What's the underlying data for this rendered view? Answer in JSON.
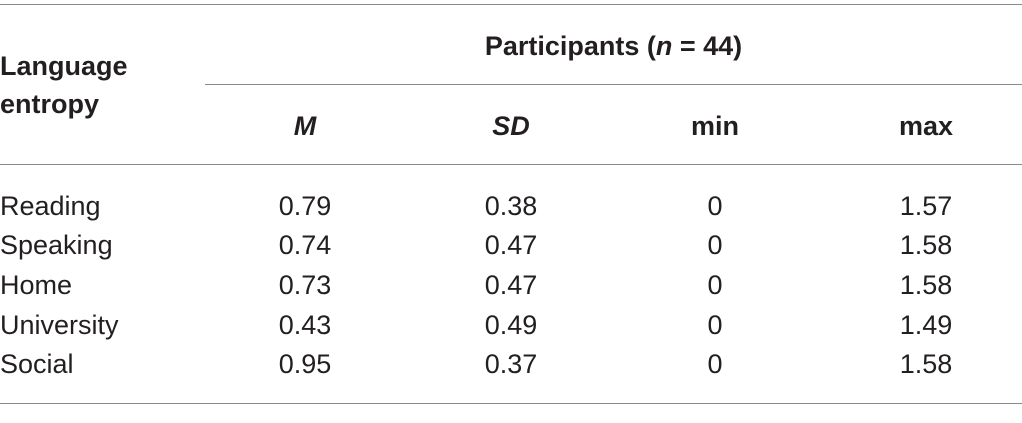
{
  "table": {
    "row_header": "Language entropy",
    "group_header": {
      "prefix": "Participants (",
      "n_symbol": "n",
      "suffix": " = 44)"
    },
    "columns": [
      "M",
      "SD",
      "min",
      "max"
    ],
    "rows": [
      {
        "label": "Reading",
        "M": "0.79",
        "SD": "0.38",
        "min": "0",
        "max": "1.57"
      },
      {
        "label": "Speaking",
        "M": "0.74",
        "SD": "0.47",
        "min": "0",
        "max": "1.58"
      },
      {
        "label": "Home",
        "M": "0.73",
        "SD": "0.47",
        "min": "0",
        "max": "1.58"
      },
      {
        "label": "University",
        "M": "0.43",
        "SD": "0.49",
        "min": "0",
        "max": "1.49"
      },
      {
        "label": "Social",
        "M": "0.95",
        "SD": "0.37",
        "min": "0",
        "max": "1.58"
      }
    ]
  }
}
